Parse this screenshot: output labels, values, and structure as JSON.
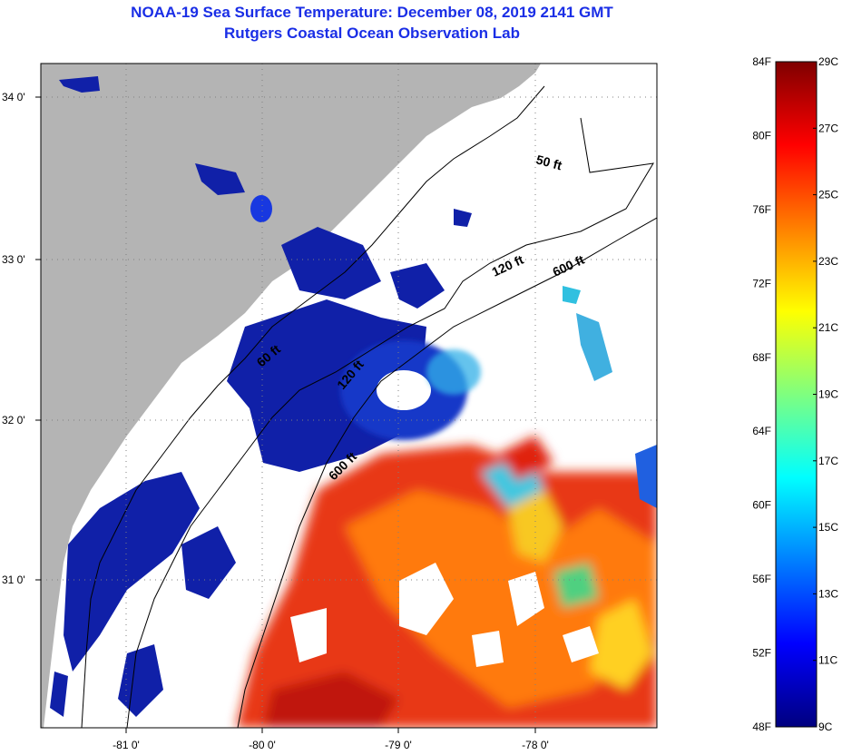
{
  "header": {
    "title": "NOAA-19 Sea Surface Temperature:  December 08, 2019 2141 GMT",
    "subtitle": "Rutgers Coastal Ocean Observation Lab"
  },
  "map": {
    "lon_ticks": [
      "-81 0'",
      "-80 0'",
      "-79 0'",
      "-78 0'"
    ],
    "lat_ticks": [
      "34 0'",
      "33 0'",
      "32 0'",
      "31 0'"
    ],
    "contour_labels": [
      "50 ft",
      "120 ft",
      "600 ft",
      "60 ft",
      "120 ft",
      "600 ft"
    ],
    "colors": {
      "land": "#b4b4b4",
      "cloud": "#ffffff",
      "cold": "#1020b0",
      "warm": "#e83010"
    }
  },
  "colorbar": {
    "fahrenheit": [
      "84F",
      "80F",
      "76F",
      "72F",
      "68F",
      "64F",
      "60F",
      "56F",
      "52F",
      "48F"
    ],
    "celsius": [
      "29C",
      "27C",
      "25C",
      "23C",
      "21C",
      "19C",
      "17C",
      "15C",
      "13C",
      "11C",
      "9C"
    ]
  }
}
